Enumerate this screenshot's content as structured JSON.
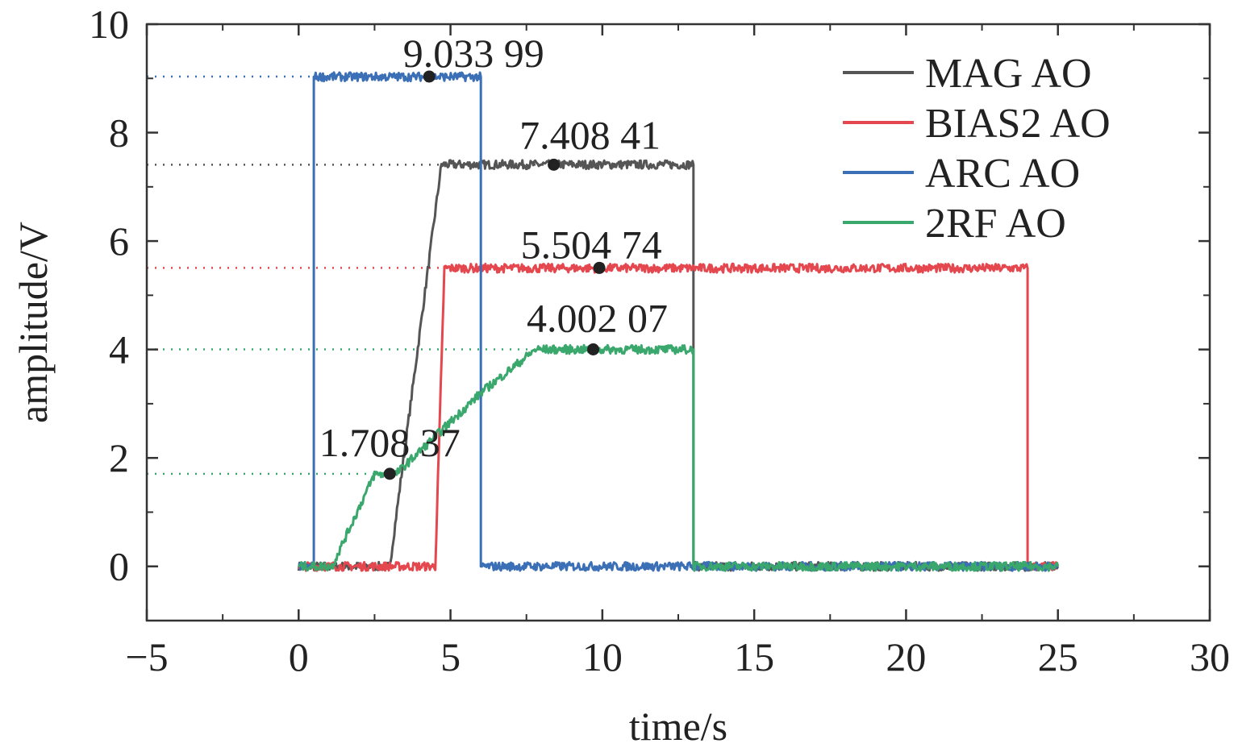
{
  "chart_data": {
    "type": "line",
    "title": "",
    "xlabel": "time/s",
    "ylabel": "amplitude/V",
    "xlim": [
      -5,
      30
    ],
    "ylim": [
      -1,
      10
    ],
    "xticks": [
      -5,
      0,
      5,
      10,
      15,
      20,
      25,
      30
    ],
    "xtick_labels": [
      "−5",
      "0",
      "5",
      "10",
      "15",
      "20",
      "25",
      "30"
    ],
    "yticks": [
      0,
      2,
      4,
      6,
      8,
      10
    ],
    "ytick_labels": [
      "0",
      "2",
      "4",
      "6",
      "8",
      "10"
    ],
    "legend_position": "top-right",
    "series": [
      {
        "name": "MAG AO",
        "color": "#555555",
        "x": [
          0,
          3.0,
          4.7,
          13.0,
          13.0,
          25
        ],
        "y": [
          0,
          0,
          7.41,
          7.41,
          0,
          0
        ]
      },
      {
        "name": "BIAS2 AO",
        "color": "#e5474f",
        "x": [
          0,
          4.5,
          4.8,
          24.0,
          24.0,
          25
        ],
        "y": [
          0,
          0,
          5.5,
          5.5,
          0,
          0
        ]
      },
      {
        "name": "ARC AO",
        "color": "#3b6fb6",
        "x": [
          0,
          0.5,
          0.5,
          6.0,
          6.0,
          25
        ],
        "y": [
          0,
          0,
          9.03,
          9.03,
          0,
          0
        ]
      },
      {
        "name": "2RF AO",
        "color": "#3aa86c",
        "x": [
          0,
          1.1,
          2.5,
          3.2,
          6.0,
          7.8,
          13.0,
          13.0,
          25
        ],
        "y": [
          0,
          0,
          1.7,
          1.7,
          3.2,
          4.0,
          4.0,
          0,
          0
        ]
      }
    ],
    "annotations": [
      {
        "label": "9.033 99",
        "x": 4.3,
        "y": 9.034,
        "series": "ARC AO"
      },
      {
        "label": "7.408 41",
        "x": 8.4,
        "y": 7.408,
        "series": "MAG AO"
      },
      {
        "label": "5.504 74",
        "x": 9.9,
        "y": 5.505,
        "series": "BIAS2 AO"
      },
      {
        "label": "4.002 07",
        "x": 9.7,
        "y": 4.002,
        "series": "2RF AO"
      },
      {
        "label": "1.708 37",
        "x": 3.0,
        "y": 1.708,
        "series": "2RF AO"
      }
    ]
  }
}
